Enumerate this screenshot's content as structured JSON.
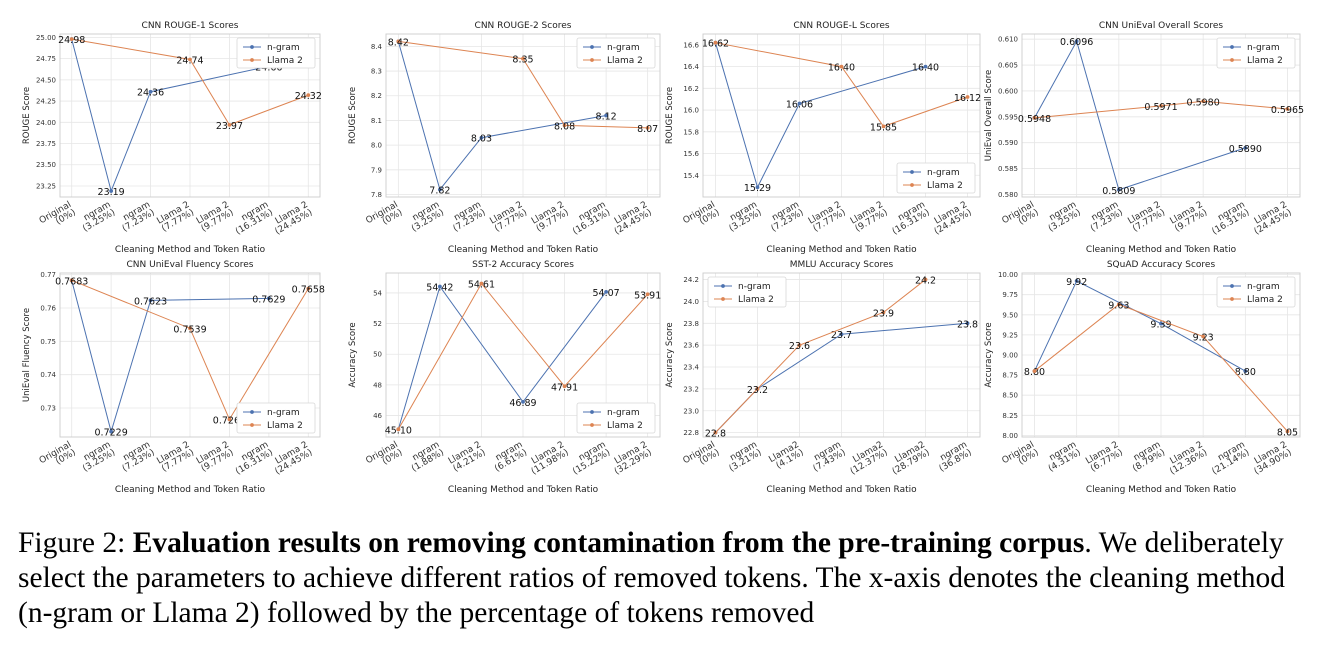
{
  "caption": {
    "label": "Figure 2:",
    "bold": "Evaluation results on removing contamination from the pre-training corpus",
    "rest": ". We deliberately select the parameters to achieve different ratios of removed tokens. The x-axis denotes the cleaning method (n-gram or Llama 2) followed by the percentage of tokens removed"
  },
  "colors": {
    "ngram": "#4c72b0",
    "llama": "#dd8452"
  },
  "chart_data": [
    {
      "type": "line",
      "title": "CNN ROUGE-1 Scores",
      "xlabel": "Cleaning Method and Token Ratio",
      "ylabel": "ROUGE Score",
      "categories": [
        "Original\n(0%)",
        "ngram\n(3.25%)",
        "ngram\n(7.23%)",
        "Llama 2\n(7.77%)",
        "Llama 2\n(9.77%)",
        "ngram\n(16.31%)",
        "Llama 2\n(24.45%)"
      ],
      "ylim": [
        23.12,
        25.04
      ],
      "yticks": [
        23.25,
        23.5,
        23.75,
        24.0,
        24.25,
        24.5,
        24.75,
        25.0
      ],
      "ytick_labels": [
        "23.25",
        "23.50",
        "23.75",
        "24.00",
        "24.25",
        "24.50",
        "24.75",
        "25.00"
      ],
      "legend": "top-right",
      "series": [
        {
          "name": "n-gram",
          "x": [
            0,
            1,
            2,
            5
          ],
          "values": [
            24.98,
            23.19,
            24.36,
            24.66
          ],
          "labels": [
            "",
            "23.19",
            "24.36",
            "24.66"
          ]
        },
        {
          "name": "Llama 2",
          "x": [
            0,
            3,
            4,
            6
          ],
          "values": [
            24.98,
            24.74,
            23.97,
            24.32
          ],
          "labels": [
            "24.98",
            "24.74",
            "23.97",
            "24.32"
          ]
        }
      ]
    },
    {
      "type": "line",
      "title": "CNN ROUGE-2 Scores",
      "xlabel": "Cleaning Method and Token Ratio",
      "ylabel": "ROUGE Score",
      "categories": [
        "Original\n(0%)",
        "ngram\n(3.25%)",
        "ngram\n(7.23%)",
        "Llama 2\n(7.77%)",
        "Llama 2\n(9.77%)",
        "ngram\n(16.31%)",
        "Llama 2\n(24.45%)"
      ],
      "ylim": [
        7.79,
        8.45
      ],
      "yticks": [
        7.8,
        7.9,
        8.0,
        8.1,
        8.2,
        8.3,
        8.4
      ],
      "ytick_labels": [
        "7.8",
        "7.9",
        "8.0",
        "8.1",
        "8.2",
        "8.3",
        "8.4"
      ],
      "legend": "top-right",
      "series": [
        {
          "name": "n-gram",
          "x": [
            0,
            1,
            2,
            5
          ],
          "values": [
            8.42,
            7.82,
            8.03,
            8.12
          ],
          "labels": [
            "",
            "7.82",
            "8.03",
            "8.12"
          ]
        },
        {
          "name": "Llama 2",
          "x": [
            0,
            3,
            4,
            6
          ],
          "values": [
            8.42,
            8.35,
            8.08,
            8.07
          ],
          "labels": [
            "8.42",
            "8.35",
            "8.08",
            "8.07"
          ]
        }
      ]
    },
    {
      "type": "line",
      "title": "CNN ROUGE-L Scores",
      "xlabel": "Cleaning Method and Token Ratio",
      "ylabel": "ROUGE Score",
      "categories": [
        "Original\n(0%)",
        "ngram\n(3.25%)",
        "ngram\n(7.23%)",
        "Llama 2\n(7.77%)",
        "Llama 2\n(9.77%)",
        "ngram\n(16.31%)",
        "Llama 2\n(24.45%)"
      ],
      "ylim": [
        15.2,
        16.7
      ],
      "yticks": [
        15.4,
        15.6,
        15.8,
        16.0,
        16.2,
        16.4,
        16.6
      ],
      "ytick_labels": [
        "15.4",
        "15.6",
        "15.8",
        "16.0",
        "16.2",
        "16.4",
        "16.6"
      ],
      "legend": "bottom-right",
      "series": [
        {
          "name": "n-gram",
          "x": [
            0,
            1,
            2,
            5
          ],
          "values": [
            16.62,
            15.29,
            16.06,
            16.4
          ],
          "labels": [
            "",
            "15.29",
            "16.06",
            "16.40"
          ]
        },
        {
          "name": "Llama 2",
          "x": [
            0,
            3,
            4,
            6
          ],
          "values": [
            16.62,
            16.4,
            15.85,
            16.12
          ],
          "labels": [
            "16.62",
            "16.40",
            "15.85",
            "16.12"
          ]
        }
      ]
    },
    {
      "type": "line",
      "title": "CNN UniEval Overall Scores",
      "xlabel": "Cleaning Method and Token Ratio",
      "ylabel": "UniEval Overall Score",
      "categories": [
        "Original\n(0%)",
        "ngram\n(3.25%)",
        "ngram\n(7.23%)",
        "Llama 2\n(7.77%)",
        "Llama 2\n(9.77%)",
        "ngram\n(16.31%)",
        "Llama 2\n(24.45%)"
      ],
      "ylim": [
        0.5795,
        0.611
      ],
      "yticks": [
        0.58,
        0.585,
        0.59,
        0.595,
        0.6,
        0.605,
        0.61
      ],
      "ytick_labels": [
        "0.580",
        "0.585",
        "0.590",
        "0.595",
        "0.600",
        "0.605",
        "0.610"
      ],
      "legend": "top-right",
      "series": [
        {
          "name": "n-gram",
          "x": [
            0,
            1,
            2,
            5
          ],
          "values": [
            0.5948,
            0.6096,
            0.5809,
            0.589
          ],
          "labels": [
            "",
            "0.6096",
            "0.5809",
            "0.5890"
          ]
        },
        {
          "name": "Llama 2",
          "x": [
            0,
            3,
            4,
            6
          ],
          "values": [
            0.5948,
            0.5971,
            0.598,
            0.5965
          ],
          "labels": [
            "0.5948",
            "0.5971",
            "0.5980",
            "0.5965"
          ]
        }
      ]
    },
    {
      "type": "line",
      "title": "CNN UniEval Fluency Scores",
      "xlabel": "Cleaning Method and Token Ratio",
      "ylabel": "UniEval Fluency Score",
      "categories": [
        "Original\n(0%)",
        "ngram\n(3.25%)",
        "ngram\n(7.23%)",
        "Llama 2\n(7.77%)",
        "Llama 2\n(9.77%)",
        "ngram\n(16.31%)",
        "Llama 2\n(24.45%)"
      ],
      "ylim": [
        0.7213,
        0.7705
      ],
      "yticks": [
        0.73,
        0.74,
        0.75,
        0.76,
        0.77
      ],
      "ytick_labels": [
        "0.73",
        "0.74",
        "0.75",
        "0.76",
        "0.77"
      ],
      "legend": "bottom-right",
      "series": [
        {
          "name": "n-gram",
          "x": [
            0,
            1,
            2,
            5
          ],
          "values": [
            0.7683,
            0.7229,
            0.7623,
            0.7629
          ],
          "labels": [
            "",
            "0.7229",
            "0.7623",
            "0.7629"
          ]
        },
        {
          "name": "Llama 2",
          "x": [
            0,
            3,
            4,
            6
          ],
          "values": [
            0.7683,
            0.7539,
            0.7266,
            0.7658
          ],
          "labels": [
            "0.7683",
            "0.7539",
            "0.7266",
            "0.7658"
          ]
        }
      ]
    },
    {
      "type": "line",
      "title": "SST-2 Accuracy Scores",
      "xlabel": "Cleaning Method and Token Ratio",
      "ylabel": "Accuracy Score",
      "categories": [
        "Original\n(0%)",
        "ngram\n(1.88%)",
        "Llama 2\n(4.21%)",
        "ngram\n(6.61%)",
        "Llama 2\n(11.98%)",
        "ngram\n(15.22%)",
        "Llama 2\n(32.29%)"
      ],
      "ylim": [
        44.6,
        55.3
      ],
      "yticks": [
        46,
        48,
        50,
        52,
        54
      ],
      "ytick_labels": [
        "46",
        "48",
        "50",
        "52",
        "54"
      ],
      "legend": "bottom-right",
      "series": [
        {
          "name": "n-gram",
          "x": [
            0,
            1,
            3,
            5
          ],
          "values": [
            45.1,
            54.42,
            46.89,
            54.07
          ],
          "labels": [
            "",
            "54.42",
            "46.89",
            "54.07"
          ]
        },
        {
          "name": "Llama 2",
          "x": [
            0,
            2,
            4,
            6
          ],
          "values": [
            45.1,
            54.61,
            47.91,
            53.91
          ],
          "labels": [
            "45.10",
            "54.61",
            "47.91",
            "53.91"
          ]
        }
      ]
    },
    {
      "type": "line",
      "title": "MMLU Accuracy Scores",
      "xlabel": "Cleaning Method and Token Ratio",
      "ylabel": "Accuracy Score",
      "categories": [
        "Original\n(0%)",
        "ngram\n(3.21%)",
        "Llama2\n(4.1%)",
        "ngram\n(7.43%)",
        "Llama2\n(12.37%)",
        "Llama2\n(28.79%)",
        "ngram\n(36.8%)"
      ],
      "ylim": [
        22.76,
        24.26
      ],
      "yticks": [
        22.8,
        23.0,
        23.2,
        23.4,
        23.6,
        23.8,
        24.0,
        24.2
      ],
      "ytick_labels": [
        "22.8",
        "23.0",
        "23.2",
        "23.4",
        "23.6",
        "23.8",
        "24.0",
        "24.2"
      ],
      "legend": "top-left",
      "series": [
        {
          "name": "n-gram",
          "x": [
            0,
            1,
            3,
            6
          ],
          "values": [
            22.8,
            23.2,
            23.7,
            23.8
          ],
          "labels": [
            "",
            "",
            "23.7",
            "23.8"
          ]
        },
        {
          "name": "Llama 2",
          "x": [
            0,
            1,
            2,
            4,
            5
          ],
          "values": [
            22.8,
            23.2,
            23.6,
            23.9,
            24.2
          ],
          "labels": [
            "22.8",
            "23.2",
            "23.6",
            "23.9",
            "24.2"
          ]
        }
      ]
    },
    {
      "type": "line",
      "title": "SQuAD Accuracy Scores",
      "xlabel": "Cleaning Method and Token Ratio",
      "ylabel": "Accuracy Score",
      "categories": [
        "Original\n(0%)",
        "ngram\n(4.31%)",
        "Llama 2\n(6.77%)",
        "ngram\n(8.79%)",
        "Llama 2\n(12.36%)",
        "ngram\n(21.14%)",
        "Llama 2\n(34.90%)"
      ],
      "ylim": [
        7.98,
        10.02
      ],
      "yticks": [
        8.0,
        8.25,
        8.5,
        8.75,
        9.0,
        9.25,
        9.5,
        9.75,
        10.0
      ],
      "ytick_labels": [
        "8.00",
        "8.25",
        "8.50",
        "8.75",
        "9.00",
        "9.25",
        "9.50",
        "9.75",
        "10.00"
      ],
      "legend": "top-right",
      "series": [
        {
          "name": "n-gram",
          "x": [
            0,
            1,
            3,
            5
          ],
          "values": [
            8.8,
            9.92,
            9.39,
            8.8
          ],
          "labels": [
            "8.80",
            "9.92",
            "9.39",
            "8.80"
          ]
        },
        {
          "name": "Llama 2",
          "x": [
            0,
            2,
            4,
            6
          ],
          "values": [
            8.8,
            9.63,
            9.23,
            8.05
          ],
          "labels": [
            "",
            "9.63",
            "9.23",
            "8.05"
          ]
        }
      ]
    }
  ]
}
